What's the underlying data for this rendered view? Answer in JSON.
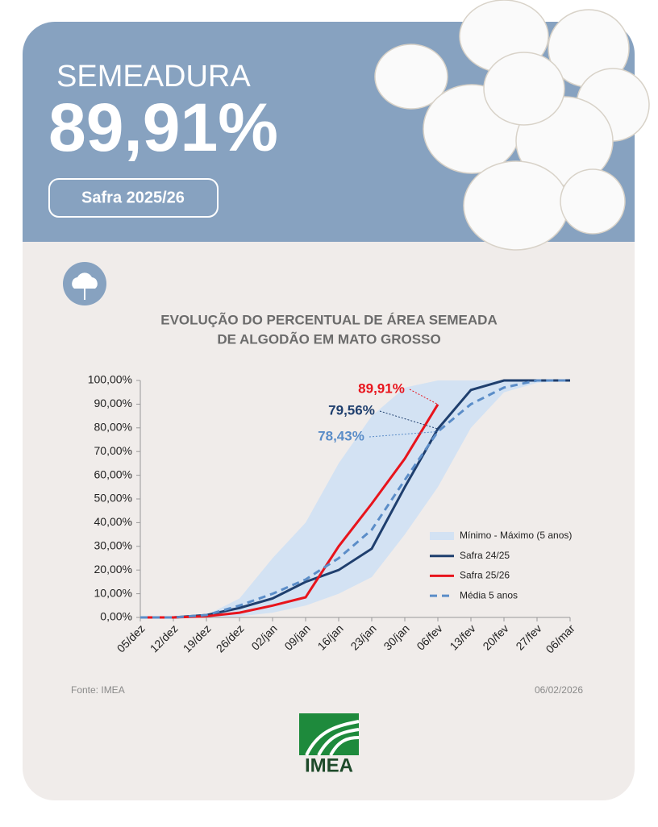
{
  "header": {
    "label": "SEMEADURA",
    "value": "89,91%",
    "season": "Safra 2025/26"
  },
  "chart_data": {
    "type": "line",
    "title_lines": [
      "EVOLUÇÃO DO PERCENTUAL DE ÁREA SEMEADA",
      "DE ALGODÃO EM MATO GROSSO"
    ],
    "categories": [
      "05/dez",
      "12/dez",
      "19/dez",
      "26/dez",
      "02/jan",
      "09/jan",
      "16/jan",
      "23/jan",
      "30/jan",
      "06/fev",
      "13/fev",
      "20/fev",
      "27/fev",
      "06/mar"
    ],
    "band": {
      "name": "Mínimo - Máximo (5 anos)",
      "color": "#d3e2f3",
      "min": [
        0,
        0,
        0,
        0.5,
        2,
        5,
        10,
        17,
        35,
        55,
        80,
        95,
        99,
        100
      ],
      "max": [
        0,
        0,
        1,
        8,
        25,
        40,
        65,
        85,
        97,
        100,
        100,
        100,
        100,
        100
      ]
    },
    "series": [
      {
        "name": "Safra 24/25",
        "color": "#1f3f6e",
        "dash": false,
        "values": [
          0,
          0,
          1,
          4,
          8,
          15,
          20,
          29,
          55,
          79.56,
          96,
          100,
          100,
          100
        ],
        "value_labels": [
          null,
          null,
          null,
          null,
          null,
          null,
          null,
          null,
          null,
          "79,56%",
          null,
          null,
          null,
          null
        ]
      },
      {
        "name": "Safra 25/26",
        "color": "#e8141c",
        "dash": false,
        "values": [
          0,
          0,
          0.5,
          2,
          5,
          8.5,
          30,
          48,
          67,
          89.91,
          null,
          null,
          null,
          null
        ],
        "value_labels": [
          null,
          null,
          null,
          null,
          null,
          null,
          null,
          null,
          null,
          "89,91%",
          null,
          null,
          null,
          null
        ]
      },
      {
        "name": "Média 5 anos",
        "color": "#5b8dc8",
        "dash": true,
        "values": [
          0,
          0,
          1,
          5,
          10,
          16,
          25,
          37,
          58,
          78.43,
          90,
          97,
          100,
          100
        ],
        "value_labels": [
          null,
          null,
          null,
          null,
          null,
          null,
          null,
          null,
          null,
          "78,43%",
          null,
          null,
          null,
          null
        ]
      }
    ],
    "ylim": [
      0,
      100
    ],
    "yticks": [
      {
        "value": 0,
        "label": "0,00%"
      },
      {
        "value": 10,
        "label": "10,00%"
      },
      {
        "value": 20,
        "label": "20,00%"
      },
      {
        "value": 30,
        "label": "30,00%"
      },
      {
        "value": 40,
        "label": "40,00%"
      },
      {
        "value": 50,
        "label": "50,00%"
      },
      {
        "value": 60,
        "label": "60,00%"
      },
      {
        "value": 70,
        "label": "70,00%"
      },
      {
        "value": 80,
        "label": "80,00%"
      },
      {
        "value": 90,
        "label": "90,00%"
      },
      {
        "value": 100,
        "label": "100,00%"
      }
    ],
    "legend": "right"
  },
  "footer": {
    "source": "Fonte: IMEA",
    "date": "06/02/2026",
    "logo": "IMEA"
  }
}
